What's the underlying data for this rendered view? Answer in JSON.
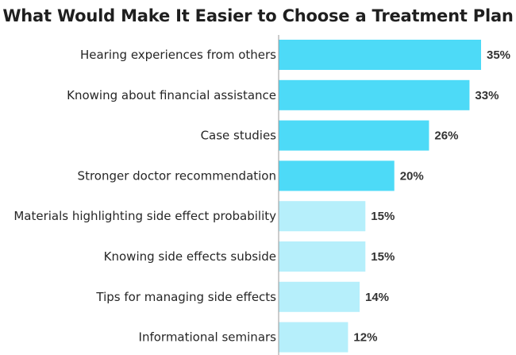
{
  "chart_data": {
    "type": "bar",
    "orientation": "horizontal",
    "title": "What Would Make It Easier to Choose a Treatment Plan",
    "categories": [
      "Hearing experiences from others",
      "Knowing about financial assistance",
      "Case studies",
      "Stronger doctor recommendation",
      "Materials highlighting side effect probability",
      "Knowing side effects subside",
      "Tips for managing side effects",
      "Informational seminars"
    ],
    "values": [
      35,
      33,
      26,
      20,
      15,
      15,
      14,
      12
    ],
    "value_labels": [
      "35%",
      "33%",
      "26%",
      "20%",
      "15%",
      "15%",
      "14%",
      "12%"
    ],
    "unit": "%",
    "xlim": [
      0,
      37
    ],
    "grid": false,
    "legend": "none",
    "colors": {
      "highlight": "#4ddaf7",
      "muted": "#b6effb",
      "axis": "#9a9a9a"
    },
    "highlight_count": 4
  }
}
